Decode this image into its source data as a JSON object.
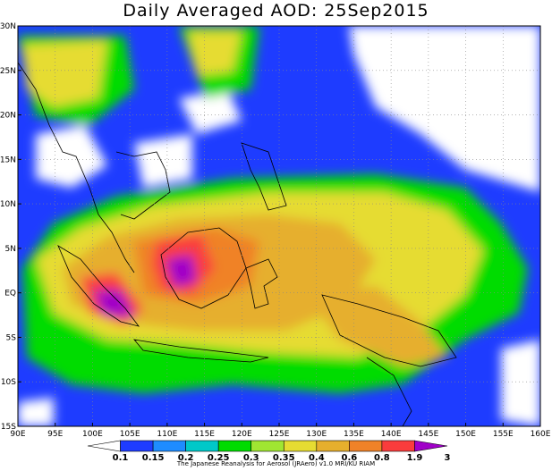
{
  "title": "Daily Averaged AOD: 25Sep2015",
  "credit": "The Japanese Reanalysis for Aerosol (JRAero) v1.0 MRI/KU RIAM",
  "lon_labels": [
    "90E",
    "95E",
    "100E",
    "105E",
    "110E",
    "115E",
    "120E",
    "125E",
    "130E",
    "135E",
    "140E",
    "145E",
    "150E",
    "155E",
    "160E"
  ],
  "lat_labels": [
    "30N",
    "25N",
    "20N",
    "15N",
    "10N",
    "5N",
    "EQ",
    "5S",
    "10S",
    "15S"
  ],
  "colorbar": {
    "labels": [
      "0.1",
      "0.15",
      "0.2",
      "0.25",
      "0.3",
      "0.35",
      "0.4",
      "0.6",
      "0.8",
      "1.9",
      "3"
    ],
    "colors": [
      "#ffffff",
      "#1e3cff",
      "#1e8cff",
      "#00c8c8",
      "#00dc00",
      "#a0e632",
      "#e6dc32",
      "#e6af2d",
      "#f08228",
      "#fa3c3c",
      "#a000c8"
    ]
  }
}
